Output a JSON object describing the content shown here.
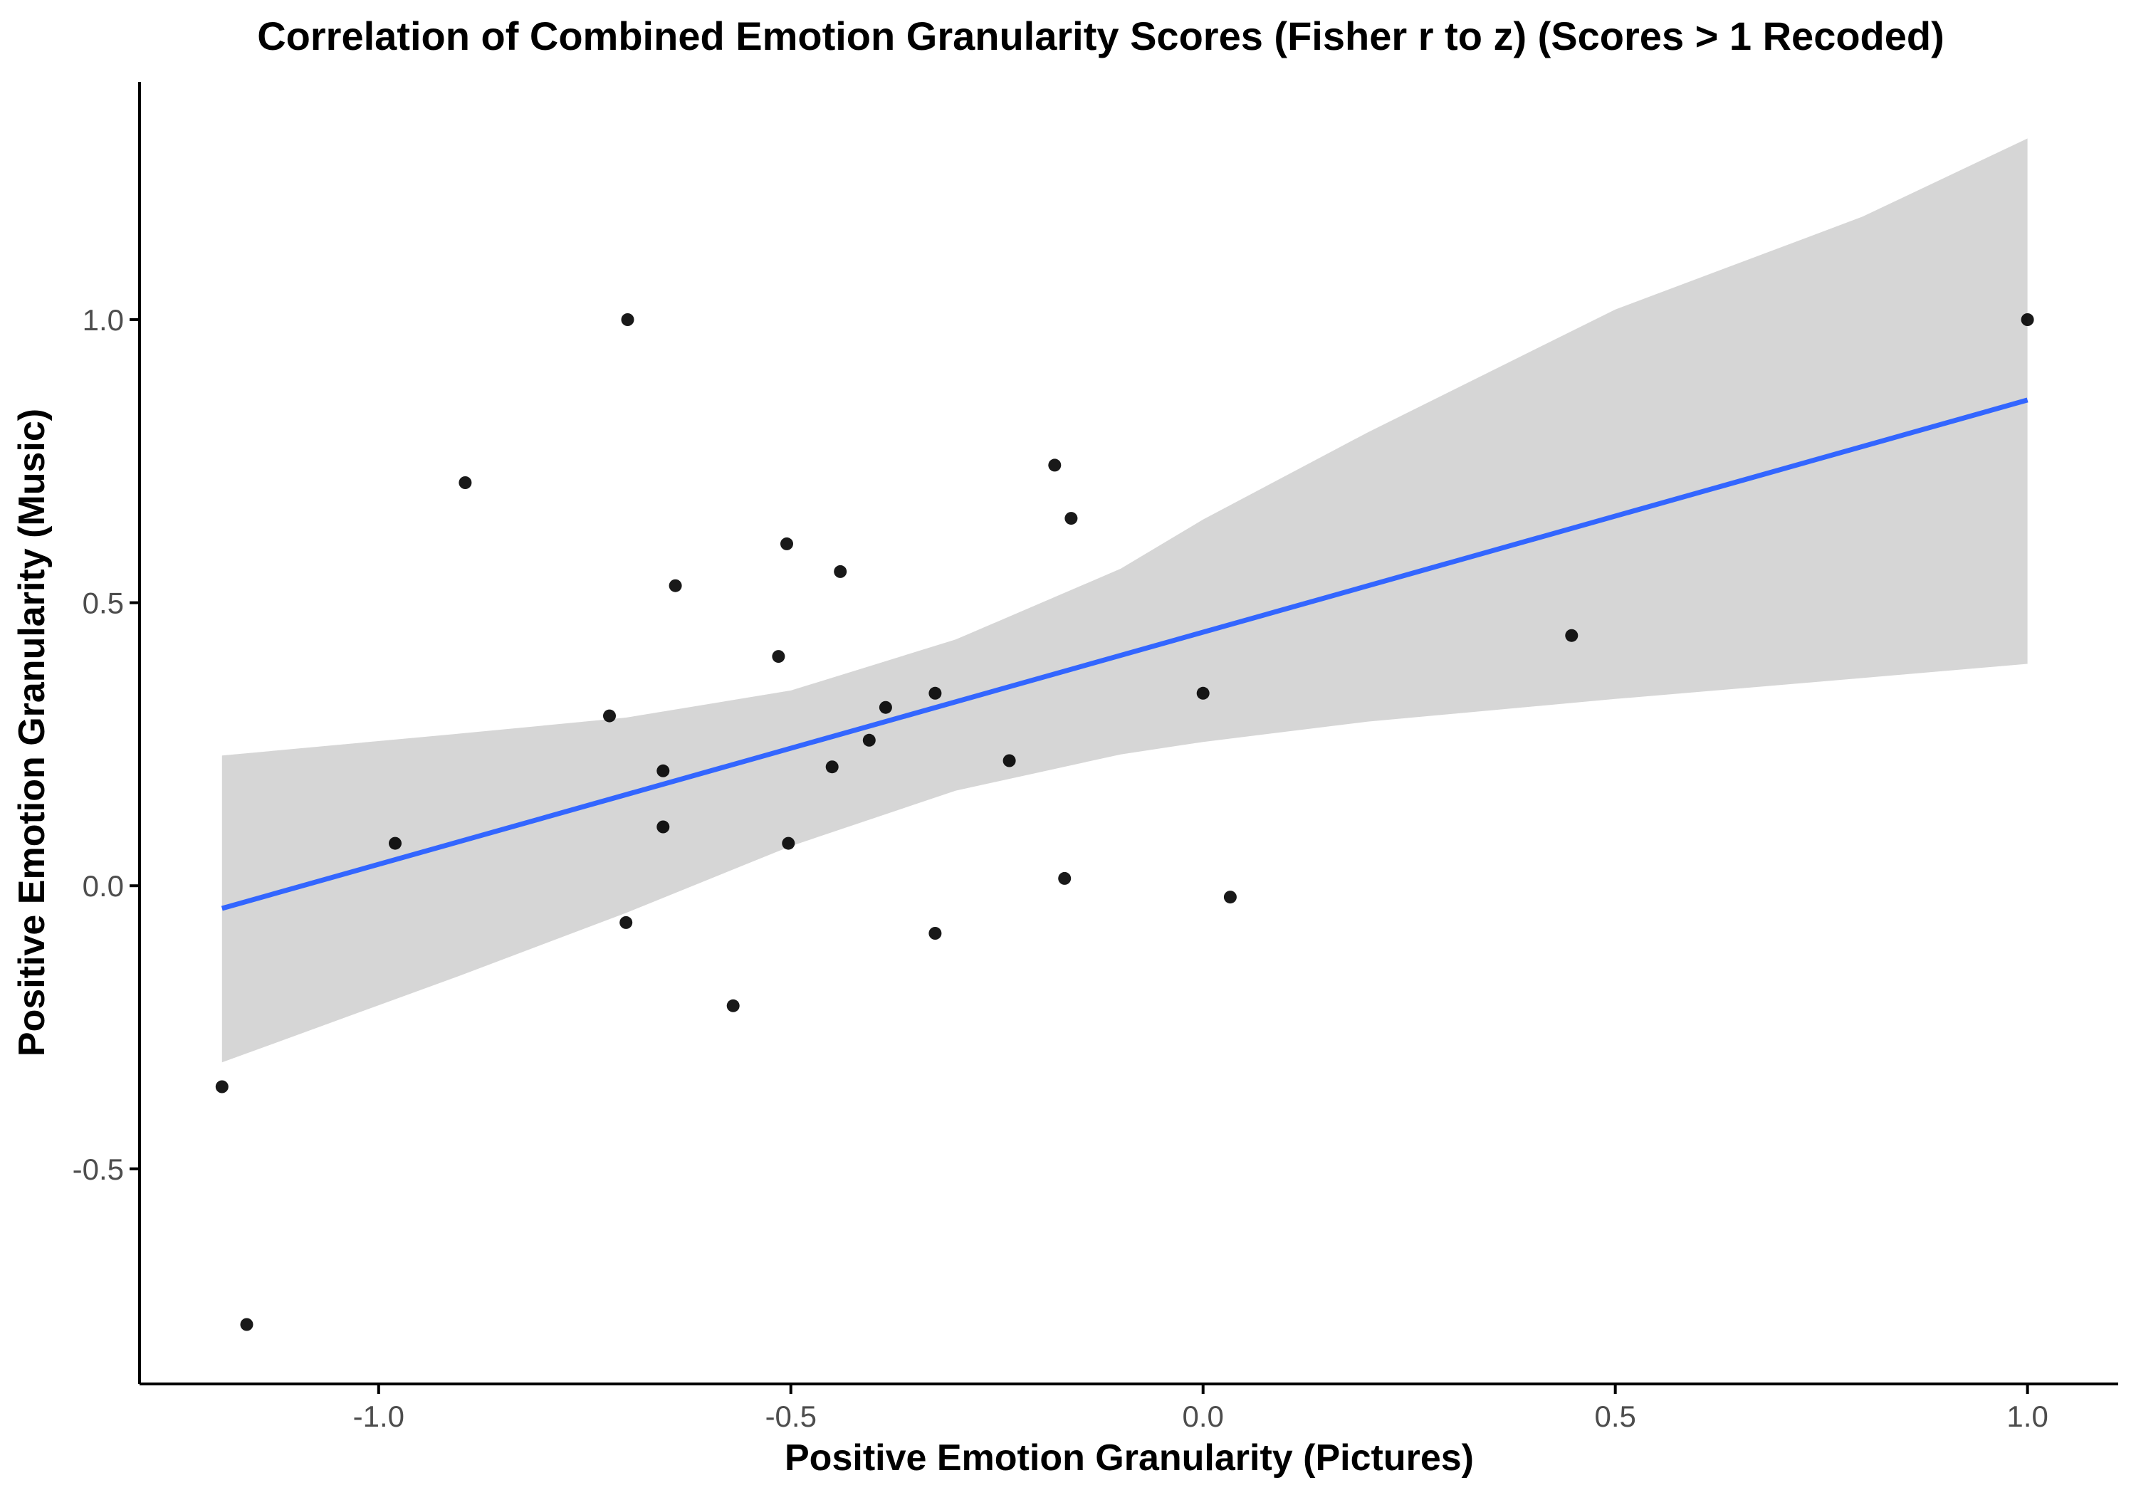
{
  "chart_data": {
    "type": "scatter",
    "title": "Correlation of Combined Emotion Granularity Scores (Fisher r to z) (Scores > 1 Recoded)",
    "xlabel": "Positive Emotion Granularity (Pictures)",
    "ylabel": "Positive Emotion Granularity (Music)",
    "xlim": [
      -1.29,
      1.11
    ],
    "ylim": [
      -0.88,
      1.42
    ],
    "x_ticks": [
      -1.0,
      -0.5,
      0.0,
      0.5,
      1.0
    ],
    "x_tick_labels": [
      "-1.0",
      "-0.5",
      "0.0",
      "0.5",
      "1.0"
    ],
    "y_ticks": [
      -0.5,
      0.0,
      0.5,
      1.0
    ],
    "y_tick_labels": [
      "-0.5",
      "0.0",
      "0.5",
      "1.0"
    ],
    "grid": false,
    "colors": {
      "points": "#000000",
      "fit_line": "#3366FF",
      "ribbon": "#D6D6D6",
      "axis": "#000000",
      "tick_label": "#4d4d4d"
    },
    "series": [
      {
        "type": "scatter",
        "x": [
          -1.19,
          -1.16,
          -0.98,
          -0.895,
          -0.72,
          -0.7,
          -0.698,
          -0.655,
          -0.655,
          -0.64,
          -0.57,
          -0.515,
          -0.505,
          -0.503,
          -0.45,
          -0.44,
          -0.405,
          -0.385,
          -0.325,
          -0.325,
          -0.235,
          -0.18,
          -0.168,
          -0.16,
          0.0,
          0.033,
          0.447,
          1.0
        ],
        "y": [
          -0.355,
          -0.775,
          0.075,
          0.712,
          0.3,
          -0.065,
          1.0,
          0.203,
          0.104,
          0.53,
          -0.212,
          0.405,
          0.604,
          0.075,
          0.21,
          0.555,
          0.257,
          0.315,
          0.34,
          -0.084,
          0.221,
          0.743,
          0.013,
          0.649,
          0.34,
          -0.02,
          0.442,
          1.0
        ]
      }
    ],
    "fit_line": {
      "method": "lm",
      "x": [
        -1.19,
        1.0
      ],
      "y": [
        -0.04,
        0.858
      ]
    },
    "confidence_band": {
      "x": [
        -1.19,
        -0.9,
        -0.7,
        -0.5,
        -0.3,
        -0.1,
        0.0,
        0.2,
        0.5,
        0.8,
        1.0
      ],
      "lower": [
        -0.312,
        -0.158,
        -0.048,
        0.07,
        0.168,
        0.232,
        0.254,
        0.29,
        0.33,
        0.367,
        0.392
      ],
      "upper": [
        0.23,
        0.269,
        0.297,
        0.345,
        0.435,
        0.56,
        0.647,
        0.801,
        1.018,
        1.182,
        1.32
      ]
    }
  }
}
